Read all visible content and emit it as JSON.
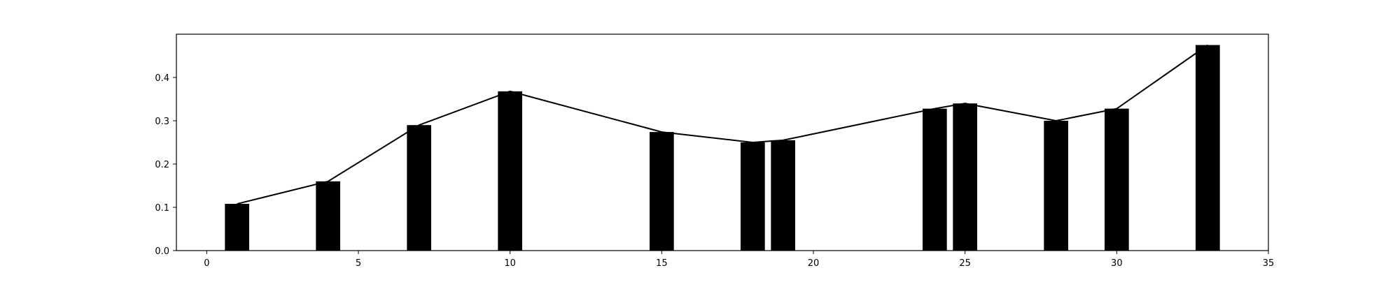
{
  "chart_data": {
    "type": "bar",
    "title": "",
    "xlabel": "",
    "ylabel": "",
    "xlim": [
      -1,
      35
    ],
    "ylim": [
      0,
      0.5
    ],
    "x_ticks": [
      0,
      5,
      10,
      15,
      20,
      25,
      30,
      35
    ],
    "y_ticks": [
      0.0,
      0.1,
      0.2,
      0.3,
      0.4
    ],
    "x_tick_labels": [
      "0",
      "5",
      "10",
      "15",
      "20",
      "25",
      "30",
      "35"
    ],
    "y_tick_labels": [
      "0.0",
      "0.1",
      "0.2",
      "0.3",
      "0.4"
    ],
    "grid": false,
    "bar_color": "#000000",
    "line_color": "#000000",
    "bar_width": 0.8,
    "x": [
      1,
      4,
      7,
      10,
      15,
      18,
      19,
      24,
      25,
      28,
      30,
      33
    ],
    "values": [
      0.108,
      0.16,
      0.29,
      0.368,
      0.274,
      0.25,
      0.255,
      0.328,
      0.34,
      0.3,
      0.328,
      0.475
    ],
    "series": [
      {
        "type": "line",
        "x": [
          1,
          4,
          7,
          10,
          15,
          18,
          19,
          24,
          25,
          28,
          30,
          33
        ],
        "values": [
          0.108,
          0.16,
          0.29,
          0.368,
          0.274,
          0.25,
          0.255,
          0.328,
          0.34,
          0.3,
          0.328,
          0.475
        ]
      }
    ]
  }
}
